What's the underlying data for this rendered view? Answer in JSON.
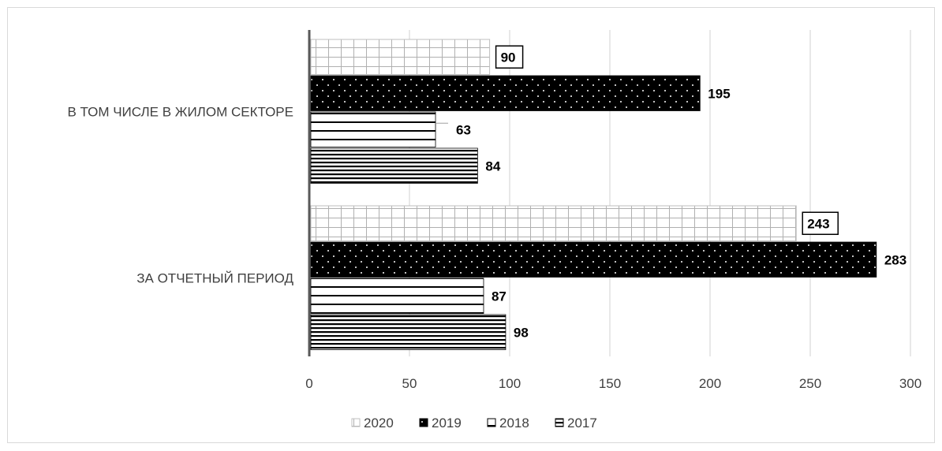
{
  "chart_data": {
    "type": "bar",
    "orientation": "horizontal",
    "title": "",
    "xlabel": "",
    "ylabel": "",
    "categories": [
      "В ТОМ ЧИСЛЕ В ЖИЛОМ СЕКТОРЕ",
      "ЗА ОТЧЕТНЫЙ ПЕРИОД"
    ],
    "series": [
      {
        "name": "2020",
        "values": [
          90,
          243
        ],
        "pattern": "grid",
        "color": "#bfbfbf",
        "label_boxed": true
      },
      {
        "name": "2019",
        "values": [
          195,
          283
        ],
        "pattern": "dots",
        "color": "#000000",
        "label_boxed": false
      },
      {
        "name": "2018",
        "values": [
          63,
          87
        ],
        "pattern": "horizontal-lines",
        "color": "#000000",
        "label_boxed": false
      },
      {
        "name": "2017",
        "values": [
          84,
          98
        ],
        "pattern": "dense-horizontal-lines",
        "color": "#000000",
        "label_boxed": false
      }
    ],
    "xlim": [
      0,
      300
    ],
    "x_ticks": [
      0,
      50,
      100,
      150,
      200,
      250,
      300
    ],
    "grid": true,
    "legend_position": "bottom"
  }
}
